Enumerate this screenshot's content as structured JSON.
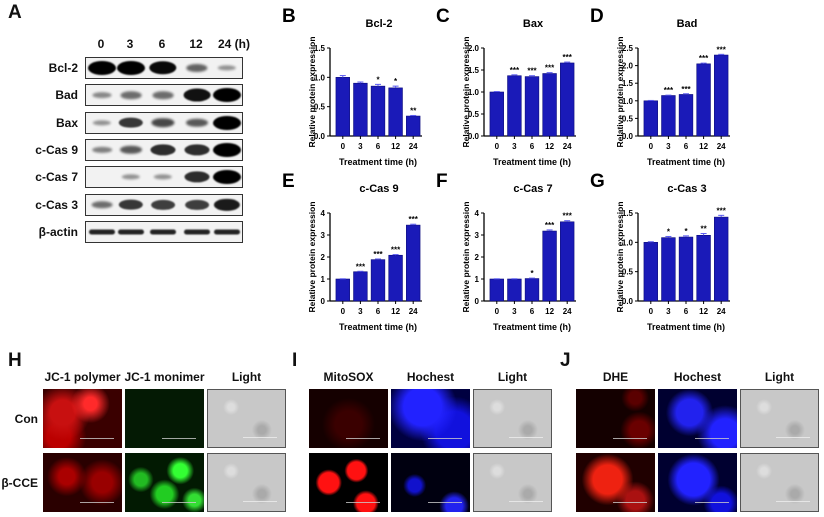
{
  "panels": {
    "A": {
      "letter": "A",
      "lanes": [
        "0",
        "3",
        "6",
        "12",
        "24 (h)"
      ],
      "rows": [
        {
          "label": "Bcl-2",
          "bands": [
            1.0,
            1.0,
            0.95,
            0.45,
            0.2
          ]
        },
        {
          "label": "Bad",
          "bands": [
            0.25,
            0.4,
            0.4,
            0.9,
            1.0
          ]
        },
        {
          "label": "Bax",
          "bands": [
            0.2,
            0.7,
            0.6,
            0.5,
            1.0
          ]
        },
        {
          "label": "c-Cas 9",
          "bands": [
            0.3,
            0.5,
            0.75,
            0.75,
            1.0
          ]
        },
        {
          "label": "c-Cas 7",
          "bands": [
            0.05,
            0.2,
            0.2,
            0.75,
            1.0
          ]
        },
        {
          "label": "c-Cas 3",
          "bands": [
            0.4,
            0.7,
            0.65,
            0.65,
            0.85
          ]
        },
        {
          "label": "β-actin",
          "bands": [
            0.8,
            0.8,
            0.8,
            0.8,
            0.8
          ]
        }
      ]
    },
    "H": {
      "letter": "H",
      "columns": [
        "JC-1 polymer",
        "JC-1 monimer",
        "Light"
      ],
      "rows": [
        "Con",
        "β-CCE"
      ]
    },
    "I": {
      "letter": "I",
      "columns": [
        "MitoSOX",
        "Hochest",
        "Light"
      ]
    },
    "J": {
      "letter": "J",
      "columns": [
        "DHE",
        "Hochest",
        "Light"
      ]
    }
  },
  "colors": {
    "bar": "#1a1ab8",
    "bar_edge": "#0a0a7a",
    "error": "#5a5af0"
  },
  "chart_data": [
    {
      "panel": "B",
      "type": "bar",
      "title": "Bcl-2",
      "xlabel": "Treatment time (h)",
      "ylabel": "Relative protein expression",
      "categories": [
        "0",
        "3",
        "6",
        "12",
        "24"
      ],
      "values": [
        1.0,
        0.9,
        0.85,
        0.82,
        0.34
      ],
      "errors": [
        0.03,
        0.02,
        0.03,
        0.03,
        0.01
      ],
      "significance": [
        "",
        "",
        "*",
        "*",
        "**"
      ],
      "ylim": [
        0,
        1.5
      ],
      "yticks": [
        "0.0",
        "0.5",
        "1.0",
        "1.5"
      ]
    },
    {
      "panel": "C",
      "type": "bar",
      "title": "Bax",
      "xlabel": "Treatment time (h)",
      "ylabel": "Relative protein expression",
      "categories": [
        "0",
        "3",
        "6",
        "12",
        "24"
      ],
      "values": [
        1.0,
        1.37,
        1.35,
        1.42,
        1.66
      ],
      "errors": [
        0.01,
        0.02,
        0.02,
        0.02,
        0.02
      ],
      "significance": [
        "",
        "***",
        "***",
        "***",
        "***"
      ],
      "ylim": [
        0,
        2.0
      ],
      "yticks": [
        "0.0",
        "0.5",
        "1.0",
        "1.5",
        "2.0"
      ]
    },
    {
      "panel": "D",
      "type": "bar",
      "title": "Bad",
      "xlabel": "Treatment time (h)",
      "ylabel": "Relative protein expression",
      "categories": [
        "0",
        "3",
        "6",
        "12",
        "24"
      ],
      "values": [
        1.0,
        1.15,
        1.18,
        2.05,
        2.3
      ],
      "errors": [
        0.01,
        0.01,
        0.02,
        0.02,
        0.02
      ],
      "significance": [
        "",
        "***",
        "***",
        "***",
        "***"
      ],
      "ylim": [
        0,
        2.5
      ],
      "yticks": [
        "0.0",
        "0.5",
        "1.0",
        "1.5",
        "2.0",
        "2.5"
      ]
    },
    {
      "panel": "E",
      "type": "bar",
      "title": "c-Cas 9",
      "xlabel": "Treatment time (h)",
      "ylabel": "Relative protein expression",
      "categories": [
        "0",
        "3",
        "6",
        "12",
        "24"
      ],
      "values": [
        1.0,
        1.33,
        1.88,
        2.08,
        3.45
      ],
      "errors": [
        0.01,
        0.02,
        0.03,
        0.03,
        0.04
      ],
      "significance": [
        "",
        "***",
        "***",
        "***",
        "***"
      ],
      "ylim": [
        0,
        4
      ],
      "yticks": [
        "0",
        "1",
        "2",
        "3",
        "4"
      ]
    },
    {
      "panel": "F",
      "type": "bar",
      "title": "c-Cas 7",
      "xlabel": "Treatment time (h)",
      "ylabel": "Relative protein expression",
      "categories": [
        "0",
        "3",
        "6",
        "12",
        "24"
      ],
      "values": [
        1.0,
        1.0,
        1.02,
        3.18,
        3.6
      ],
      "errors": [
        0.01,
        0.01,
        0.02,
        0.05,
        0.05
      ],
      "significance": [
        "",
        "",
        "*",
        "***",
        "***"
      ],
      "ylim": [
        0,
        4
      ],
      "yticks": [
        "0",
        "1",
        "2",
        "3",
        "4"
      ]
    },
    {
      "panel": "G",
      "type": "bar",
      "title": "c-Cas 3",
      "xlabel": "Treatment time (h)",
      "ylabel": "Relative protein expression",
      "categories": [
        "0",
        "3",
        "6",
        "12",
        "24"
      ],
      "values": [
        1.0,
        1.08,
        1.09,
        1.12,
        1.43
      ],
      "errors": [
        0.01,
        0.02,
        0.02,
        0.03,
        0.03
      ],
      "significance": [
        "",
        "*",
        "*",
        "**",
        "***"
      ],
      "ylim": [
        0,
        1.5
      ],
      "yticks": [
        "0.0",
        "0.5",
        "1.0",
        "1.5"
      ]
    }
  ]
}
